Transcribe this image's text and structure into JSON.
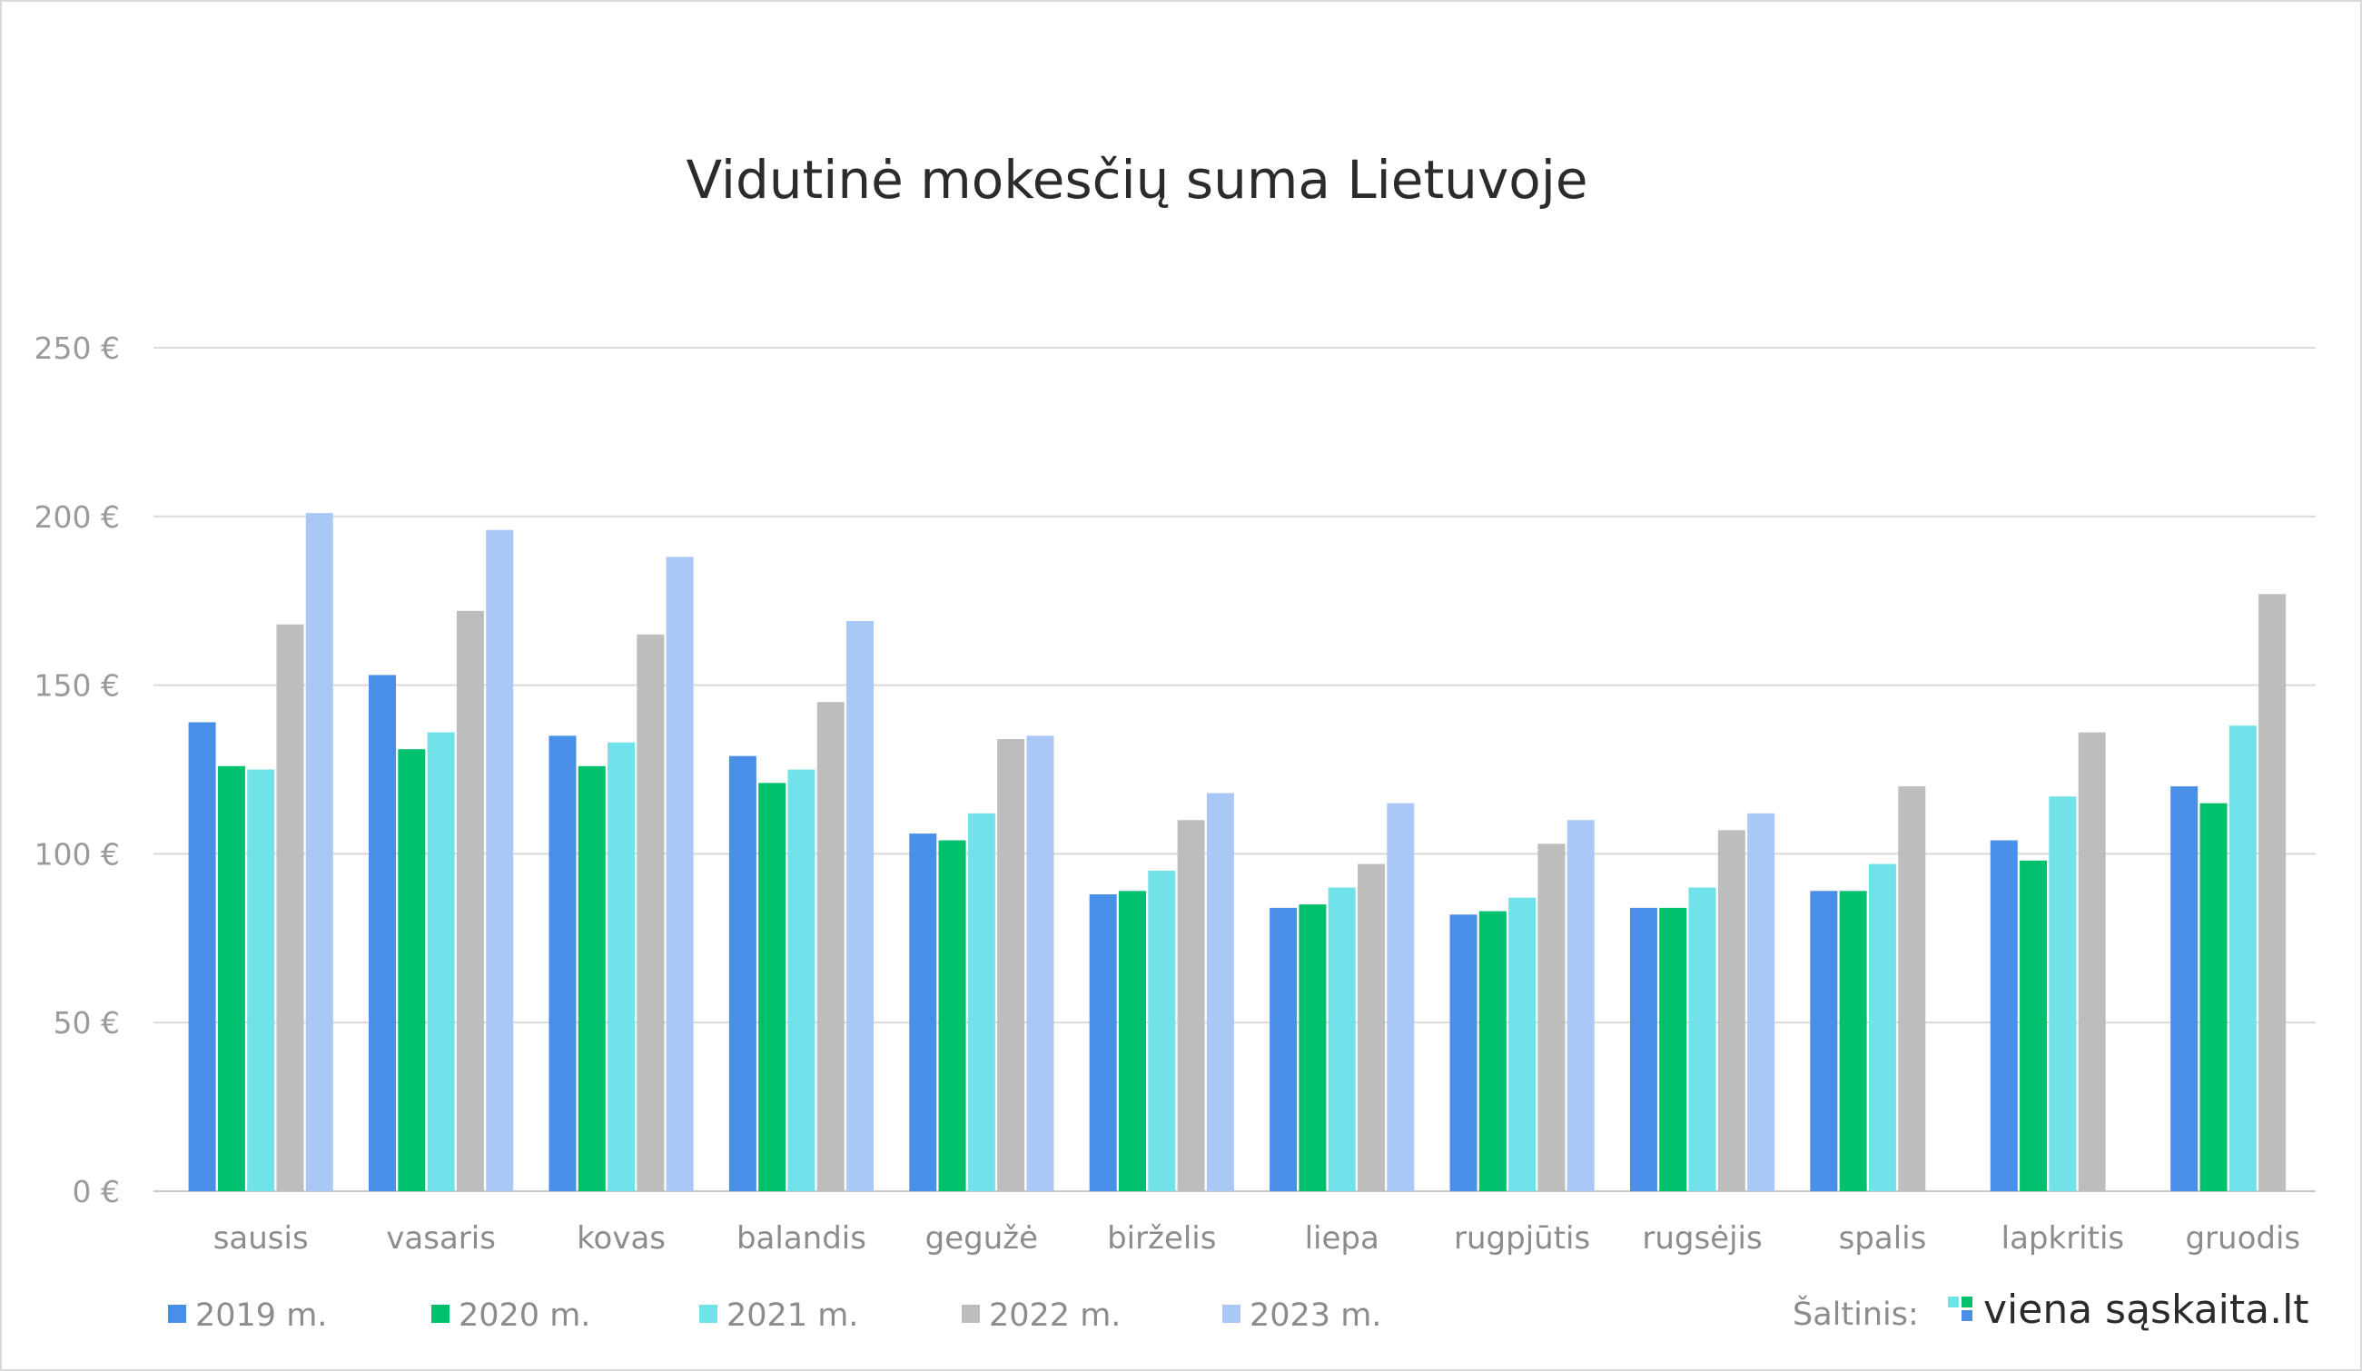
{
  "chart_data": {
    "type": "bar",
    "title": "Vidutinė mokesčių suma Lietuvoje",
    "xlabel": "",
    "ylabel": "",
    "ylim": [
      0,
      250
    ],
    "yticks": [
      "0 €",
      "50 €",
      "100 €",
      "150 €",
      "200 €",
      "250 €"
    ],
    "ytick_values": [
      0,
      50,
      100,
      150,
      200,
      250
    ],
    "grid": true,
    "legend_position": "bottom-left",
    "categories": [
      "sausis",
      "vasaris",
      "kovas",
      "balandis",
      "gegužė",
      "birželis",
      "liepa",
      "rugpjūtis",
      "rugsėjis",
      "spalis",
      "lapkritis",
      "gruodis"
    ],
    "series": [
      {
        "name": "2019 m.",
        "color": "#4a8fe7",
        "values": [
          139,
          153,
          135,
          129,
          106,
          88,
          84,
          82,
          84,
          89,
          104,
          120
        ]
      },
      {
        "name": "2020 m.",
        "color": "#00c06d",
        "values": [
          126,
          131,
          126,
          121,
          104,
          89,
          85,
          83,
          84,
          89,
          98,
          115
        ]
      },
      {
        "name": "2021 m.",
        "color": "#72e2ea",
        "values": [
          125,
          136,
          133,
          125,
          112,
          95,
          90,
          87,
          90,
          97,
          117,
          138
        ]
      },
      {
        "name": "2022 m.",
        "color": "#bdbdbd",
        "values": [
          168,
          172,
          165,
          145,
          134,
          110,
          97,
          103,
          107,
          120,
          136,
          177
        ]
      },
      {
        "name": "2023 m.",
        "color": "#a9c8f5",
        "values": [
          201,
          196,
          188,
          169,
          135,
          118,
          115,
          110,
          112,
          null,
          null,
          null
        ]
      }
    ]
  },
  "source": {
    "label": "Šaltinis:",
    "brand": "viena sąskaita.lt",
    "logo_colors": [
      "#72e2ea",
      "#00c06d",
      "#4a8fe7",
      "#4a8fe7"
    ]
  }
}
